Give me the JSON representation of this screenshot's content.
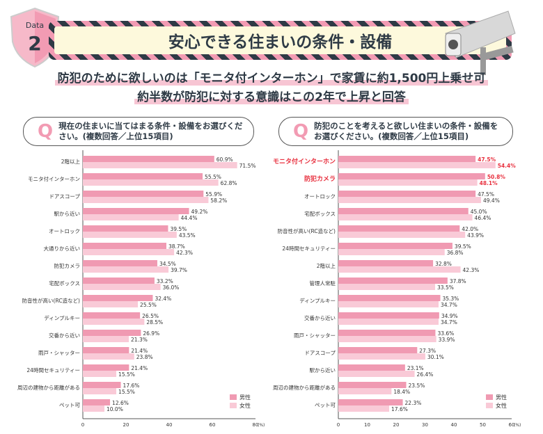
{
  "badge": {
    "label": "Data",
    "number": "2"
  },
  "title": "安心できる住まいの条件・設備",
  "subtitle": [
    "防犯のために欲しいのは「モニタ付インターホン」で家賃に約1,500円上乗せ可",
    "約半数が防犯に対する意識はこの2年で上昇と回答"
  ],
  "colors": {
    "male": "#f09ab2",
    "female": "#f9cad7",
    "highlight": "#e8313f"
  },
  "chart_data": [
    {
      "type": "bar",
      "orientation": "horizontal",
      "question": [
        "現在の住まいに当てはまる条件・設備をお選びくだ",
        "さい。(複数回答／上位15項目)"
      ],
      "q_mark": "Q",
      "categories": [
        "2階以上",
        "モニタ付インターホン",
        "ドアスコープ",
        "駅から近い",
        "オートロック",
        "大通りから近い",
        "防犯カメラ",
        "宅配ボックス",
        "防音性が高い(RC造など)",
        "ディンプルキー",
        "交番から近い",
        "雨戸・シャッター",
        "24時間セキュリティー",
        "周辺の建物から距離がある",
        "ペット可"
      ],
      "series": [
        {
          "name": "男性",
          "values": [
            60.9,
            55.5,
            55.9,
            49.2,
            39.5,
            38.7,
            34.5,
            33.2,
            32.4,
            26.5,
            26.9,
            21.4,
            21.4,
            17.6,
            12.6
          ]
        },
        {
          "name": "女性",
          "values": [
            71.5,
            62.8,
            58.2,
            44.4,
            43.5,
            42.3,
            39.7,
            36.0,
            25.5,
            28.5,
            21.3,
            23.8,
            15.5,
            15.5,
            10.0
          ]
        }
      ],
      "xlim": [
        0,
        80
      ],
      "xticks": [
        "0",
        "20",
        "40",
        "60",
        "80"
      ],
      "xunit": "(%)",
      "legend": "bottom-right",
      "highlight": []
    },
    {
      "type": "bar",
      "orientation": "horizontal",
      "question": [
        "防犯のことを考えると欲しい住まいの条件・設備を",
        "お選びください。(複数回答／上位15項目)"
      ],
      "q_mark": "Q",
      "categories": [
        "モニタ付インターホン",
        "防犯カメラ",
        "オートロック",
        "宅配ボックス",
        "防音性が高い(RC造など)",
        "24時間セキュリティー",
        "2階以上",
        "管理人常駐",
        "ディンプルキー",
        "交番から近い",
        "雨戸・シャッター",
        "ドアスコープ",
        "駅から近い",
        "周辺の建物から距離がある",
        "ペット可"
      ],
      "series": [
        {
          "name": "男性",
          "values": [
            47.5,
            50.8,
            47.5,
            45.0,
            42.0,
            39.5,
            32.8,
            37.8,
            35.3,
            34.9,
            33.6,
            27.3,
            23.1,
            23.5,
            22.3
          ]
        },
        {
          "name": "女性",
          "values": [
            54.4,
            48.1,
            49.4,
            46.4,
            43.9,
            36.8,
            42.3,
            33.5,
            34.7,
            34.7,
            33.9,
            30.1,
            26.4,
            18.4,
            17.6
          ]
        }
      ],
      "xlim": [
        0,
        60
      ],
      "xticks": [
        "0",
        "10",
        "20",
        "30",
        "40",
        "50",
        "60"
      ],
      "xunit": "(%)",
      "legend": "bottom-right",
      "highlight": [
        0,
        1
      ]
    }
  ]
}
